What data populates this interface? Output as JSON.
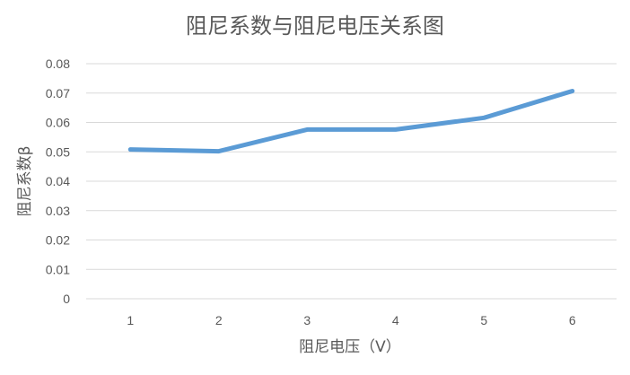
{
  "chart_data": {
    "type": "line",
    "title": "阻尼系数与阻尼电压关系图",
    "xlabel": "阻尼电压（V）",
    "ylabel": "阻尼系数β",
    "categories": [
      "1",
      "2",
      "3",
      "4",
      "5",
      "6"
    ],
    "series": [
      {
        "name": "阻尼系数β",
        "values": [
          0.0508,
          0.0502,
          0.0576,
          0.0576,
          0.0616,
          0.0707
        ]
      }
    ],
    "ylim": [
      0,
      0.08
    ],
    "yticks": [
      "0",
      "0.01",
      "0.02",
      "0.03",
      "0.04",
      "0.05",
      "0.06",
      "0.07",
      "0.08"
    ],
    "grid": true,
    "legend": "none",
    "colors": {
      "series": "#5b9bd5",
      "grid": "#d9d9d9",
      "text": "#595959"
    }
  }
}
